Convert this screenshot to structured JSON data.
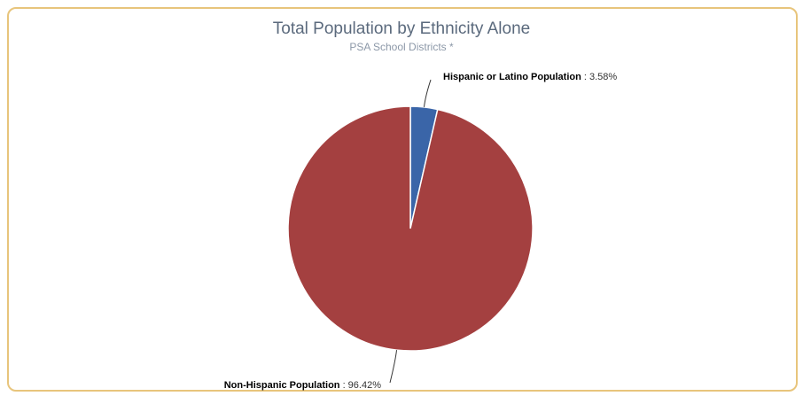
{
  "chart_data": {
    "type": "pie",
    "title": "Total Population by Ethnicity Alone",
    "subtitle": "PSA School Districts *",
    "slices": [
      {
        "name": "Hispanic or Latino Population",
        "value": 3.58,
        "value_label": "3.58%",
        "color": "#3a65a8"
      },
      {
        "name": "Non-Hispanic Population",
        "value": 96.42,
        "value_label": "96.42%",
        "color": "#a44040"
      }
    ],
    "legend": "none",
    "data_labels": "outside-with-connectors"
  }
}
